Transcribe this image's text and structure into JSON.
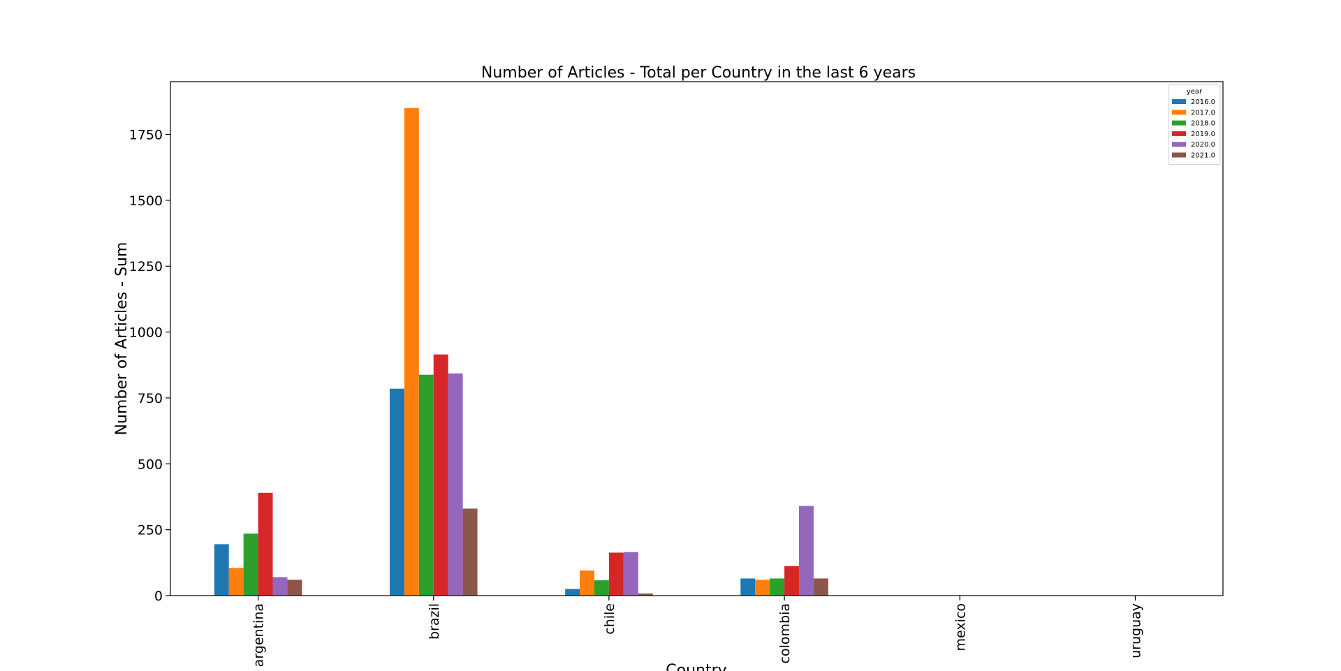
{
  "chart_data": {
    "type": "bar",
    "title": "Number of Articles - Total  per Country in the last 6 years",
    "xlabel": "Country",
    "ylabel": "Number of Articles - Sum",
    "categories": [
      "argentina",
      "brazil",
      "chile",
      "colombia",
      "mexico",
      "uruguay"
    ],
    "ylim": [
      0,
      1950
    ],
    "yticks": [
      0,
      250,
      500,
      750,
      1000,
      1250,
      1500,
      1750
    ],
    "grid": false,
    "legend": {
      "title": "year",
      "placement": "top-right"
    },
    "series": [
      {
        "name": "2016.0",
        "color": "#1f77b4",
        "values": [
          195,
          785,
          25,
          65,
          0,
          0
        ]
      },
      {
        "name": "2017.0",
        "color": "#ff7f0e",
        "values": [
          105,
          1850,
          95,
          60,
          0,
          0
        ]
      },
      {
        "name": "2018.0",
        "color": "#2ca02c",
        "values": [
          235,
          838,
          58,
          65,
          0,
          0
        ]
      },
      {
        "name": "2019.0",
        "color": "#d62728",
        "values": [
          390,
          915,
          163,
          112,
          0,
          0
        ]
      },
      {
        "name": "2020.0",
        "color": "#9467bd",
        "values": [
          70,
          843,
          165,
          340,
          0,
          0
        ]
      },
      {
        "name": "2021.0",
        "color": "#8c564b",
        "values": [
          60,
          330,
          8,
          65,
          0,
          0
        ]
      }
    ]
  }
}
